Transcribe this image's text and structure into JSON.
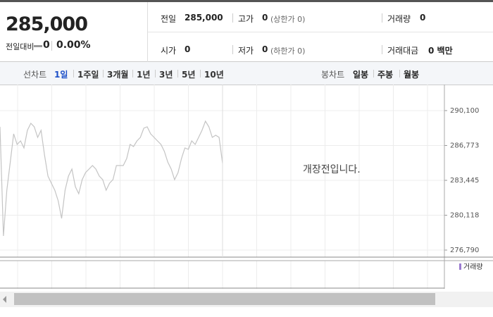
{
  "header": {
    "price": "285,000",
    "change_label": "전일대비",
    "change": "0",
    "change_rate": "0.00%",
    "stats": [
      {
        "label": "전일",
        "value": "285,000"
      },
      {
        "label": "고가",
        "value": "0",
        "note": "(상한가 0)"
      },
      {
        "label": "거래량",
        "value": "0"
      },
      {
        "label": "시가",
        "value": "0"
      },
      {
        "label": "저가",
        "value": "0",
        "note": "(하한가 0)"
      },
      {
        "label": "거래대금",
        "value": "0 백만"
      }
    ]
  },
  "tabs": {
    "line_label": "선차트",
    "line_periods": [
      "1일",
      "1주일",
      "3개월",
      "1년",
      "3년",
      "5년",
      "10년"
    ],
    "selected": 0,
    "candle_label": "봉차트",
    "candle_periods": [
      "일봉",
      "주봉",
      "월봉"
    ]
  },
  "chart_data": {
    "type": "line",
    "color": "#c4c4c4",
    "annotation": "개장전입니다.",
    "volume_label": "거래량",
    "values": [
      288554,
      278134,
      282504,
      285193,
      287882,
      286873,
      287209,
      286537,
      288218,
      288890,
      288554,
      287546,
      288218,
      285865,
      283849,
      283176,
      282504,
      281496,
      279815,
      282504,
      283849,
      284521,
      282840,
      282168,
      283512,
      284185,
      284521,
      284857,
      284521,
      283849,
      283512,
      282504,
      283176,
      283512,
      284857,
      284857,
      284857,
      285529,
      286873,
      286672,
      287209,
      287546,
      288420,
      288554,
      287882,
      287546,
      287209,
      286873,
      286201,
      285193,
      284521,
      283512,
      284185,
      285529,
      286537,
      286403,
      287209,
      286873,
      287546,
      288218,
      289092,
      288554,
      287546,
      287747,
      287546,
      285058
    ],
    "ylim": [
      276790,
      290100
    ],
    "yticks": [
      {
        "value": 276790,
        "label": "276,790"
      },
      {
        "value": 280118,
        "label": "280,118"
      },
      {
        "value": 283445,
        "label": "283,445"
      },
      {
        "value": 286773,
        "label": "286,773"
      },
      {
        "value": 290100,
        "label": "290,100"
      }
    ],
    "grid": true
  }
}
